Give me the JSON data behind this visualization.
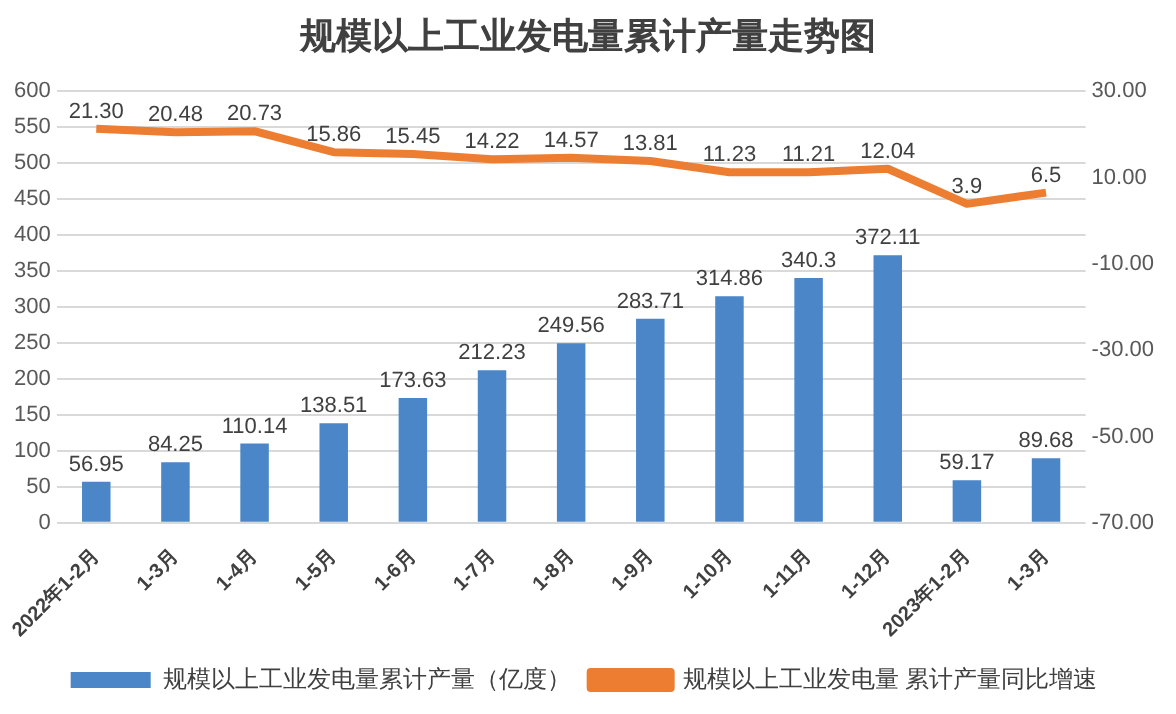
{
  "chart_data": {
    "type": "bar",
    "title": "规模以上工业发电量累计产量走势图",
    "categories": [
      "2022年1-2月",
      "1-3月",
      "1-4月",
      "1-5月",
      "1-6月",
      "1-7月",
      "1-8月",
      "1-9月",
      "1-10月",
      "1-11月",
      "1-12月",
      "2023年1-2月",
      "1-3月"
    ],
    "series": [
      {
        "name": "规模以上工业发电量累计产量（亿度）",
        "color": "#4a86c8",
        "values": [
          56.95,
          84.25,
          110.14,
          138.51,
          173.63,
          212.23,
          249.56,
          283.71,
          314.86,
          340.3,
          372.11,
          59.17,
          89.68
        ]
      },
      {
        "name": "规模以上工业发电量 累计产量同比增速",
        "type": "line",
        "axis": "y2",
        "color": "#ed7d31",
        "values": [
          21.3,
          20.48,
          20.73,
          15.86,
          15.45,
          14.22,
          14.57,
          13.81,
          11.23,
          11.21,
          12.04,
          3.9,
          6.5
        ],
        "value_labels": [
          "21.30",
          "20.48",
          "20.73",
          "15.86",
          "15.45",
          "14.22",
          "14.57",
          "13.81",
          "11.23",
          "11.21",
          "12.04",
          "3.9",
          "6.5"
        ]
      }
    ],
    "ylim": [
      0,
      600
    ],
    "yticks": [
      0,
      50,
      100,
      150,
      200,
      250,
      300,
      350,
      400,
      450,
      500,
      550,
      600
    ],
    "y2lim": [
      -70,
      30
    ],
    "y2ticks": [
      {
        "value": -70,
        "label": "-70.00"
      },
      {
        "value": -50,
        "label": "-50.00"
      },
      {
        "value": -30,
        "label": "-30.00"
      },
      {
        "value": -10,
        "label": "-10.00"
      },
      {
        "value": 10,
        "label": "10.00"
      },
      {
        "value": 30,
        "label": "30.00"
      }
    ],
    "data_labels": true,
    "grid": "y",
    "legend": "bottom",
    "marker": "none"
  }
}
